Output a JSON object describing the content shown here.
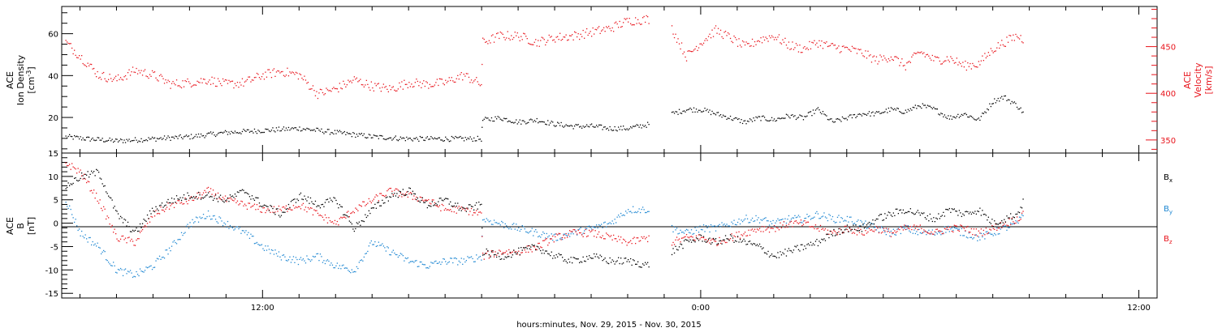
{
  "xlabel": "hours:minutes, Nov. 29, 2015 - Nov. 30, 2015",
  "colors": {
    "axis": "#000000",
    "velocity": "#e8141c",
    "bx": "#000000",
    "by": "#1e87d2",
    "bz": "#e8141c"
  },
  "chart_data": [
    {
      "type": "scatter",
      "panel": "top",
      "xlabel": "hours:minutes, Nov. 29, 2015 - Nov. 30, 2015",
      "xticks": [
        {
          "hour": 12,
          "label": "12:00"
        },
        {
          "hour": 24,
          "label": "0:00"
        },
        {
          "hour": 36,
          "label": "12:00"
        }
      ],
      "xlim_hours": [
        6.5,
        36.5
      ],
      "left_axis": {
        "label_lines": [
          "ACE",
          "Ion Density"
        ],
        "unit_base": "[cm",
        "unit_sup": "-3",
        "unit_end": "]",
        "ticks": [
          20,
          40,
          60
        ],
        "ylim": [
          3,
          73
        ]
      },
      "right_axis": {
        "label_lines": [
          "ACE",
          "Velocity"
        ],
        "unit": "[km/s]",
        "ticks": [
          350,
          400,
          450
        ],
        "ylim": [
          336,
          493
        ]
      },
      "series": [
        {
          "axis": "left",
          "color": "#000000",
          "hours": [
            6.6,
            7.2,
            8.0,
            9.0,
            10.0,
            11.0,
            12.0,
            13.0,
            14.0,
            15.0,
            16.0,
            17.0,
            17.98,
            18.02,
            18.5,
            19.0,
            19.5,
            20.0,
            20.5,
            21.0,
            21.5,
            22.0,
            22.6,
            22.85,
            23.2,
            23.6,
            24.0,
            24.4,
            24.8,
            25.2,
            25.6,
            26.0,
            26.4,
            26.8,
            27.2,
            27.6,
            28.0,
            28.4,
            28.8,
            29.2,
            29.6,
            30.0,
            30.4,
            30.8,
            31.2,
            31.6,
            32.0,
            32.3,
            32.65,
            32.85
          ],
          "values": [
            11,
            10,
            9,
            10,
            11,
            13,
            14,
            15,
            13,
            11,
            10,
            10,
            10,
            19,
            20,
            18,
            19,
            17,
            16,
            16,
            15,
            15,
            17,
            null,
            22,
            24,
            24,
            22,
            20,
            18,
            20,
            19,
            21,
            20,
            24,
            18,
            20,
            22,
            22,
            24,
            23,
            26,
            24,
            20,
            22,
            19,
            28,
            30,
            26,
            22
          ]
        },
        {
          "axis": "right",
          "color": "#e8141c",
          "hours": [
            6.6,
            7.0,
            7.5,
            8.0,
            8.5,
            9.0,
            9.5,
            10.0,
            10.5,
            11.0,
            11.5,
            12.0,
            12.5,
            13.0,
            13.5,
            14.0,
            14.5,
            15.0,
            15.5,
            16.0,
            16.5,
            17.0,
            17.5,
            17.98,
            18.02,
            18.5,
            19.0,
            19.5,
            20.0,
            20.5,
            21.0,
            21.5,
            22.0,
            22.6,
            22.85,
            23.2,
            23.6,
            24.0,
            24.4,
            24.8,
            25.2,
            25.6,
            26.0,
            26.4,
            26.8,
            27.2,
            27.6,
            28.0,
            28.4,
            28.8,
            29.2,
            29.6,
            30.0,
            30.4,
            30.8,
            31.2,
            31.6,
            32.0,
            32.3,
            32.65,
            32.85
          ],
          "values": [
            455,
            440,
            420,
            415,
            425,
            420,
            410,
            412,
            415,
            410,
            412,
            420,
            424,
            420,
            400,
            405,
            415,
            408,
            405,
            412,
            410,
            412,
            420,
            410,
            455,
            462,
            462,
            455,
            460,
            462,
            466,
            470,
            478,
            480,
            null,
            470,
            440,
            455,
            468,
            460,
            450,
            458,
            462,
            452,
            448,
            455,
            450,
            448,
            444,
            436,
            440,
            430,
            445,
            436,
            438,
            430,
            432,
            448,
            455,
            462,
            458
          ]
        }
      ]
    },
    {
      "type": "scatter",
      "panel": "bottom",
      "xlabel": "hours:minutes, Nov. 29, 2015 - Nov. 30, 2015",
      "xlim_hours": [
        6.5,
        36.5
      ],
      "left_axis": {
        "label_lines": [
          "ACE",
          "B"
        ],
        "unit": "[nT]",
        "ticks": [
          -15,
          -10,
          -5,
          0,
          5,
          10,
          15
        ],
        "ylim": [
          -16,
          15
        ]
      },
      "zero_line": 0,
      "legend": [
        {
          "base": "B",
          "sub": "x",
          "color": "#000000"
        },
        {
          "base": "B",
          "sub": "y",
          "color": "#1e87d2"
        },
        {
          "base": "B",
          "sub": "z",
          "color": "#e8141c"
        }
      ],
      "series": [
        {
          "name": "Bx",
          "color": "#000000",
          "hours": [
            6.6,
            7.0,
            7.5,
            8.0,
            8.5,
            9.0,
            9.5,
            10.0,
            10.5,
            11.0,
            11.5,
            12.0,
            12.5,
            13.0,
            13.5,
            14.0,
            14.5,
            15.0,
            15.5,
            16.0,
            16.5,
            17.0,
            17.5,
            17.98,
            18.02,
            18.5,
            19.0,
            19.5,
            20.0,
            20.5,
            21.0,
            21.5,
            22.0,
            22.6,
            22.85,
            23.2,
            23.6,
            24.0,
            24.4,
            24.8,
            25.2,
            25.6,
            26.0,
            26.4,
            26.8,
            27.2,
            27.6,
            28.0,
            28.4,
            28.8,
            29.2,
            29.6,
            30.0,
            30.4,
            30.8,
            31.2,
            31.6,
            32.0,
            32.3,
            32.65,
            32.85
          ],
          "values": [
            8,
            10,
            11,
            2,
            -2,
            3,
            5,
            6,
            6,
            5,
            7,
            4,
            2,
            6,
            4,
            5,
            -1,
            3,
            6,
            7,
            4,
            5,
            3,
            4,
            -6,
            -7,
            -6,
            -5,
            -7,
            -8,
            -7,
            -8,
            -8,
            -9,
            null,
            -6,
            -4,
            -3,
            -4,
            -3,
            -4,
            -5,
            -7,
            -6,
            -5,
            -4,
            -2,
            -1,
            -1,
            1,
            2,
            3,
            2,
            1,
            3,
            2,
            3,
            0,
            1,
            2,
            5
          ]
        },
        {
          "name": "By",
          "color": "#1e87d2",
          "hours": [
            6.6,
            7.0,
            7.5,
            8.0,
            8.5,
            9.0,
            9.5,
            10.0,
            10.5,
            11.0,
            11.5,
            12.0,
            12.5,
            13.0,
            13.5,
            14.0,
            14.5,
            15.0,
            15.5,
            16.0,
            16.5,
            17.0,
            17.5,
            17.98,
            18.02,
            18.5,
            19.0,
            19.5,
            20.0,
            20.5,
            21.0,
            21.5,
            22.0,
            22.6,
            22.85,
            23.2,
            23.6,
            24.0,
            24.4,
            24.8,
            25.2,
            25.6,
            26.0,
            26.4,
            26.8,
            27.2,
            27.6,
            28.0,
            28.4,
            28.8,
            29.2,
            29.6,
            30.0,
            30.4,
            30.8,
            31.2,
            31.6,
            32.0,
            32.3,
            32.65,
            32.85
          ],
          "values": [
            5,
            -2,
            -5,
            -10,
            -11,
            -9,
            -5,
            0,
            2,
            0,
            -2,
            -5,
            -7,
            -8,
            -7,
            -9,
            -10,
            -4,
            -6,
            -8,
            -9,
            -8,
            -8,
            -7,
            1,
            0,
            -1,
            -2,
            -3,
            -2,
            -1,
            0,
            3,
            3,
            null,
            -1,
            -2,
            -1,
            -1,
            0,
            1,
            1,
            0,
            1,
            1,
            2,
            1,
            1,
            0,
            -1,
            -2,
            -1,
            -2,
            -2,
            -1,
            -2,
            -3,
            -2,
            -1,
            0,
            2
          ]
        },
        {
          "name": "Bz",
          "color": "#e8141c",
          "hours": [
            6.6,
            7.0,
            7.5,
            8.0,
            8.5,
            9.0,
            9.5,
            10.0,
            10.5,
            11.0,
            11.5,
            12.0,
            12.5,
            13.0,
            13.5,
            14.0,
            14.5,
            15.0,
            15.5,
            16.0,
            16.5,
            17.0,
            17.5,
            17.98,
            18.02,
            18.5,
            19.0,
            19.5,
            20.0,
            20.5,
            21.0,
            21.5,
            22.0,
            22.6,
            22.85,
            23.2,
            23.6,
            24.0,
            24.4,
            24.8,
            25.2,
            25.6,
            26.0,
            26.4,
            26.8,
            27.2,
            27.6,
            28.0,
            28.4,
            28.8,
            29.2,
            29.6,
            30.0,
            30.4,
            30.8,
            31.2,
            31.6,
            32.0,
            32.3,
            32.65,
            32.85
          ],
          "values": [
            13,
            11,
            5,
            -3,
            -4,
            2,
            4,
            5,
            7,
            5,
            4,
            3,
            3,
            4,
            2,
            0,
            3,
            5,
            7,
            6,
            5,
            3,
            3,
            2,
            -7,
            -6,
            -6,
            -5,
            -3,
            -2,
            -2,
            -3,
            -4,
            -3,
            null,
            -4,
            -3,
            -3,
            -4,
            -3,
            -2,
            -1,
            -1,
            0,
            0,
            -1,
            -2,
            -1,
            -2,
            -1,
            -2,
            -1,
            -1,
            -2,
            -1,
            -1,
            -2,
            -1,
            0,
            1,
            2
          ]
        }
      ]
    }
  ]
}
